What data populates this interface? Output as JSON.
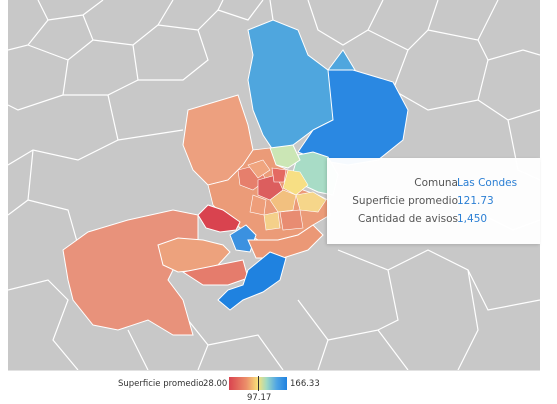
{
  "tooltip": {
    "rows": [
      {
        "key": "Comuna",
        "value": "Las Condes"
      },
      {
        "key": "Superficie promedio",
        "value": "121.73"
      },
      {
        "key": "Cantidad de avisos",
        "value": "1,450"
      }
    ]
  },
  "legend": {
    "title": "Superficie promedio",
    "min": "28.00",
    "mid": "97.17",
    "max": "166.33"
  },
  "colors": {
    "background_land": "#c8c8c8",
    "border": "#ffffff",
    "low": "#d9434f",
    "mid": "#f9e27a",
    "high": "#1f82e0",
    "tooltip_value": "#2b7fd4"
  }
}
